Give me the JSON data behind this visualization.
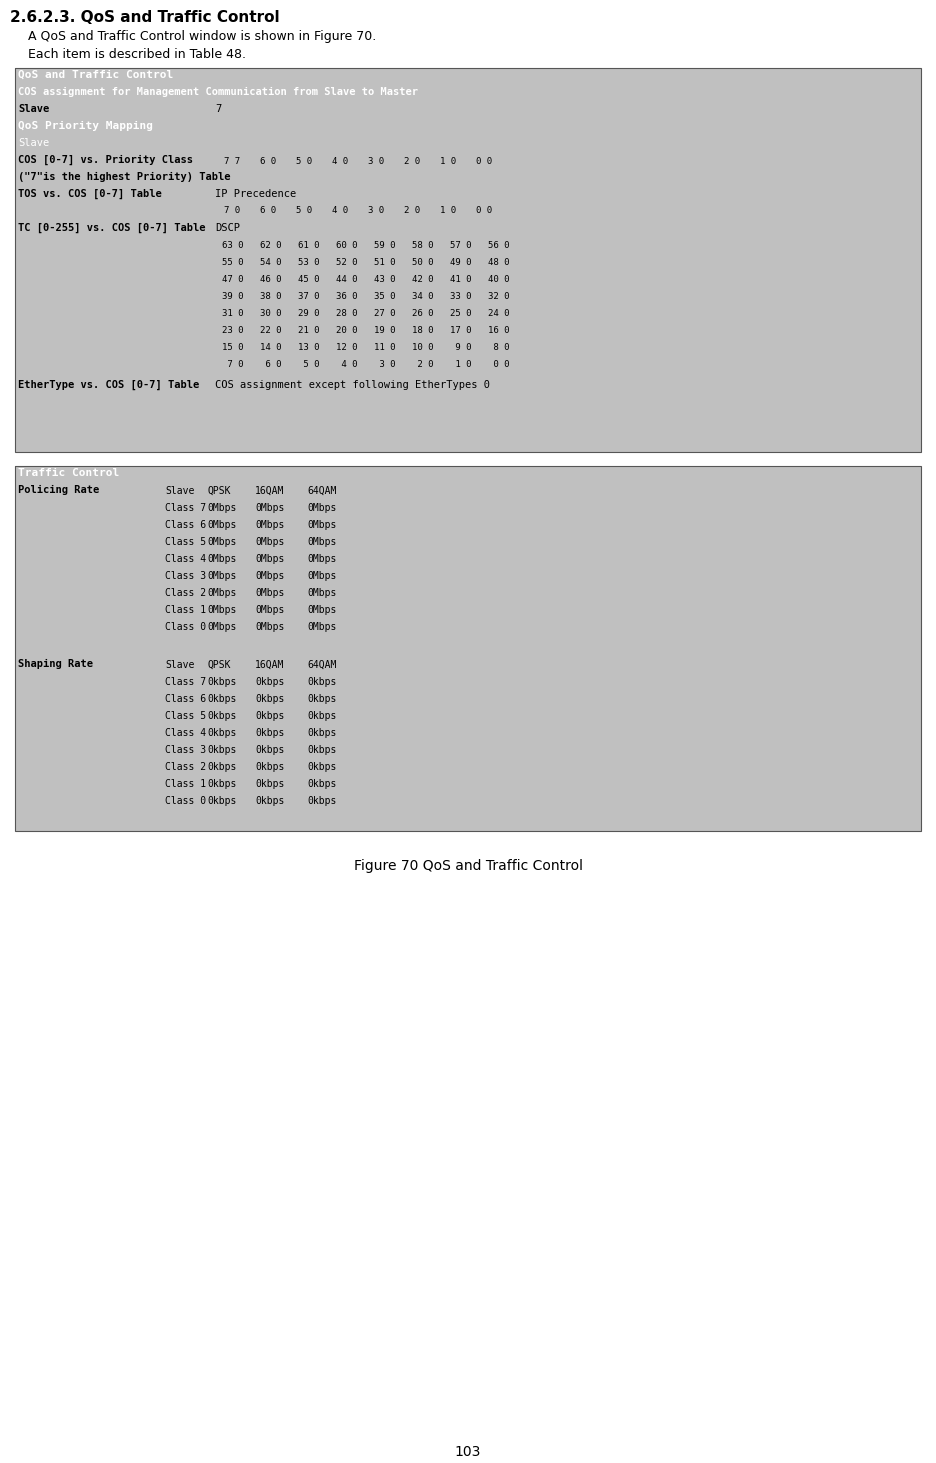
{
  "title": "2.6.2.3. QoS and Traffic Control",
  "subtitle1": "A QoS and Traffic Control window is shown in Figure 70.",
  "subtitle2": "Each item is described in Table 48.",
  "figure_caption": "Figure 70 QoS and Traffic Control",
  "page_number": "103",
  "bg_color": "#ffffff",
  "color_dark_header": "#606060",
  "color_med_header": "#888888",
  "color_light_row": "#c8c8c8",
  "color_lighter_row": "#d8d8d8",
  "color_white": "#ffffff",
  "color_input_box": "#e4e4e4",
  "color_border": "#555555",
  "color_panel_bg": "#c8c8c8"
}
